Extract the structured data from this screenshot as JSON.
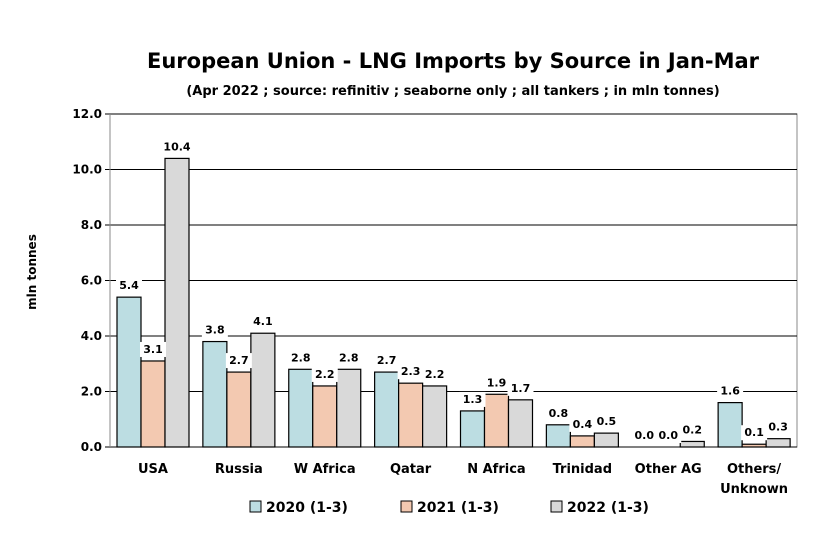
{
  "chart_data": {
    "type": "bar",
    "title": "European Union - LNG Imports by Source in Jan-Mar",
    "subtitle": "(Apr 2022 ; source: refinitiv ; seaborne only ; all tankers ; in mln tonnes)",
    "xlabel": "",
    "ylabel": "mln tonnes",
    "ylim": [
      0,
      12
    ],
    "yticks": [
      "0.0",
      "2.0",
      "4.0",
      "6.0",
      "8.0",
      "10.0",
      "12.0"
    ],
    "grid": true,
    "legend_position": "bottom",
    "categories": [
      "USA",
      "Russia",
      "W Africa",
      "Qatar",
      "N Africa",
      "Trinidad",
      "Other AG",
      "Others/\nUnknown"
    ],
    "series": [
      {
        "name": "2020 (1-3)",
        "color": "#bcdde2",
        "values": [
          5.4,
          3.8,
          2.8,
          2.7,
          1.3,
          0.8,
          0.0,
          1.6
        ]
      },
      {
        "name": "2021 (1-3)",
        "color": "#f3c9b1",
        "values": [
          3.1,
          2.7,
          2.2,
          2.3,
          1.9,
          0.4,
          0.0,
          0.1
        ]
      },
      {
        "name": "2022 (1-3)",
        "color": "#d9d9d9",
        "values": [
          10.4,
          4.1,
          2.8,
          2.2,
          1.7,
          0.5,
          0.2,
          0.3
        ]
      }
    ]
  }
}
